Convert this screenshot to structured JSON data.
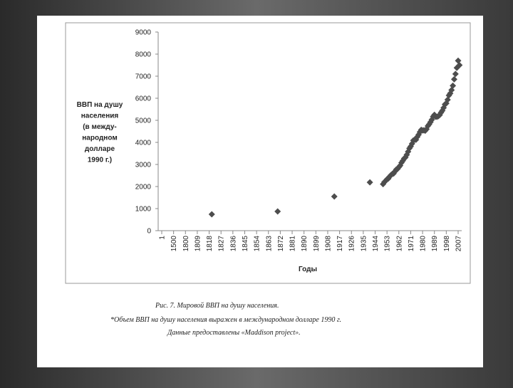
{
  "chart_data": {
    "type": "scatter",
    "y_label_lines": [
      "ВВП на душу",
      "населения",
      "(в между-",
      "народном",
      "долларе",
      "1990 г.)"
    ],
    "x_label": "Годы",
    "caption": "Рис. 7. Мировой ВВП на душу населения.",
    "notes": [
      "*Объем ВВП на душу населения выражен в международном долларе 1990 г.",
      "Данные предоставлены «Maddison project»."
    ],
    "xticks": [
      1,
      1500,
      1800,
      1809,
      1818,
      1827,
      1836,
      1845,
      1854,
      1863,
      1872,
      1881,
      1890,
      1899,
      1908,
      1917,
      1926,
      1935,
      1944,
      1953,
      1962,
      1971,
      1980,
      1989,
      1998,
      2007
    ],
    "ylim": [
      0,
      9000
    ],
    "yticks": [
      0,
      1000,
      2000,
      3000,
      4000,
      5000,
      6000,
      7000,
      8000,
      9000
    ],
    "series": [
      {
        "color": "#4d4d4d",
        "x": [
          1820,
          1870,
          1913,
          1940,
          1950,
          1951,
          1952,
          1953,
          1954,
          1955,
          1956,
          1957,
          1958,
          1959,
          1960,
          1961,
          1962,
          1963,
          1964,
          1965,
          1966,
          1967,
          1968,
          1969,
          1970,
          1971,
          1972,
          1973,
          1974,
          1975,
          1976,
          1977,
          1978,
          1979,
          1980,
          1981,
          1982,
          1983,
          1984,
          1985,
          1986,
          1987,
          1988,
          1989,
          1990,
          1991,
          1992,
          1993,
          1994,
          1995,
          1996,
          1997,
          1998,
          1999,
          2000,
          2001,
          2002,
          2003,
          2004,
          2005,
          2006,
          2007,
          2008
        ],
        "values": [
          740,
          870,
          1550,
          2190,
          2110,
          2200,
          2260,
          2330,
          2360,
          2450,
          2520,
          2570,
          2590,
          2680,
          2770,
          2800,
          2880,
          2950,
          3080,
          3170,
          3270,
          3320,
          3440,
          3580,
          3730,
          3820,
          3940,
          4090,
          4120,
          4120,
          4250,
          4350,
          4470,
          4570,
          4540,
          4550,
          4530,
          4600,
          4740,
          4820,
          4920,
          5030,
          5170,
          5250,
          5160,
          5160,
          5190,
          5240,
          5350,
          5440,
          5570,
          5720,
          5770,
          5930,
          6130,
          6220,
          6370,
          6570,
          6860,
          7100,
          7380,
          7700,
          7500
        ]
      }
    ]
  }
}
